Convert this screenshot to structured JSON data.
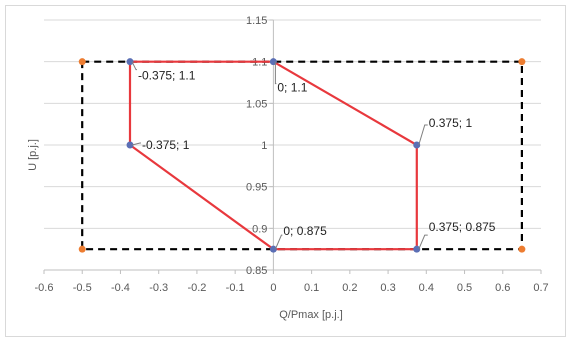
{
  "chart_data": {
    "type": "scatter",
    "xlabel": "Q/Pmax [p.j.]",
    "ylabel": "U [p.j.]",
    "xlim": [
      -0.6,
      0.7
    ],
    "ylim": [
      0.85,
      1.15
    ],
    "xticks": [
      "-0.6",
      "-0.5",
      "-0.4",
      "-0.3",
      "-0.2",
      "-0.1",
      "0",
      "0.1",
      "0.2",
      "0.3",
      "0.4",
      "0.5",
      "0.6",
      "0.7"
    ],
    "yticks": [
      "0.85",
      "0.9",
      "0.95",
      "1",
      "1.05",
      "1.1",
      "1.15"
    ],
    "grid": "horizontal",
    "legend": "none",
    "series": [
      {
        "style": "dashed",
        "color": "#000000",
        "marker_color": "#ed7d31",
        "points": [
          {
            "x": -0.5,
            "y": 1.1
          },
          {
            "x": 0.65,
            "y": 1.1
          },
          {
            "x": 0.65,
            "y": 0.875
          },
          {
            "x": -0.5,
            "y": 0.875
          },
          {
            "x": -0.5,
            "y": 1.1
          }
        ]
      },
      {
        "style": "solid",
        "color": "#e8383d",
        "marker_color": "#5b6fb5",
        "points": [
          {
            "x": -0.375,
            "y": 1.1,
            "label": "-0.375; 1.1"
          },
          {
            "x": 0,
            "y": 1.1,
            "label": "0; 1.1"
          },
          {
            "x": 0.375,
            "y": 1,
            "label": "0.375; 1"
          },
          {
            "x": 0.375,
            "y": 0.875,
            "label": "0.375; 0.875"
          },
          {
            "x": 0,
            "y": 0.875,
            "label": "0; 0.875"
          },
          {
            "x": -0.375,
            "y": 1,
            "label": "-0.375; 1"
          },
          {
            "x": -0.375,
            "y": 1.1
          }
        ]
      }
    ]
  }
}
